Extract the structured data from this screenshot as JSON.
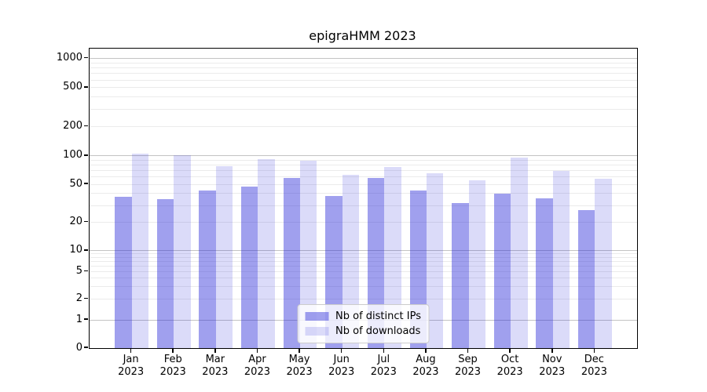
{
  "title": "epigraHMM 2023",
  "legend": {
    "items": [
      {
        "label": "Nb of distinct IPs",
        "color": "rgba(34,34,215,0.43)"
      },
      {
        "label": "Nb of downloads",
        "color": "rgba(34,34,215,0.16)"
      }
    ],
    "position": "lower center"
  },
  "colors": {
    "bar_distinct_ips": "rgba(34,34,215,0.43)",
    "bar_downloads": "rgba(34,34,215,0.16)",
    "grid_major": "#c3c3c3",
    "grid_minor": "#ebebeb",
    "axis": "#000000",
    "background": "#ffffff"
  },
  "chart_data": {
    "type": "bar",
    "title": "epigraHMM 2023",
    "categories": [
      "Jan",
      "Feb",
      "Mar",
      "Apr",
      "May",
      "Jun",
      "Jul",
      "Aug",
      "Sep",
      "Oct",
      "Nov",
      "Dec"
    ],
    "year_label": "2023",
    "series": [
      {
        "name": "Nb of distinct IPs",
        "values": [
          37,
          35,
          43,
          47,
          59,
          38,
          58,
          43,
          32,
          40,
          36,
          27
        ]
      },
      {
        "name": "Nb of downloads",
        "values": [
          106,
          101,
          78,
          93,
          88,
          63,
          77,
          66,
          55,
          95,
          70,
          57
        ]
      }
    ],
    "xlabel": "",
    "ylabel": "",
    "grid": true,
    "legend_position": "lower center",
    "yscale": {
      "type": "symlog",
      "tick_values": [
        0,
        1,
        2,
        5,
        10,
        20,
        50,
        100,
        200,
        500,
        1000
      ],
      "tick_labels": [
        "0",
        "1",
        "2",
        "5",
        "10",
        "20",
        "50",
        "100",
        "200",
        "500",
        "1000"
      ],
      "major_decades": [
        1,
        10,
        100,
        1000
      ],
      "anchors_fraction_from_bottom": {
        "0": 0,
        "1": 0.0941,
        "10": 0.3249,
        "100": 0.642,
        "1000": 0.9671
      }
    }
  }
}
